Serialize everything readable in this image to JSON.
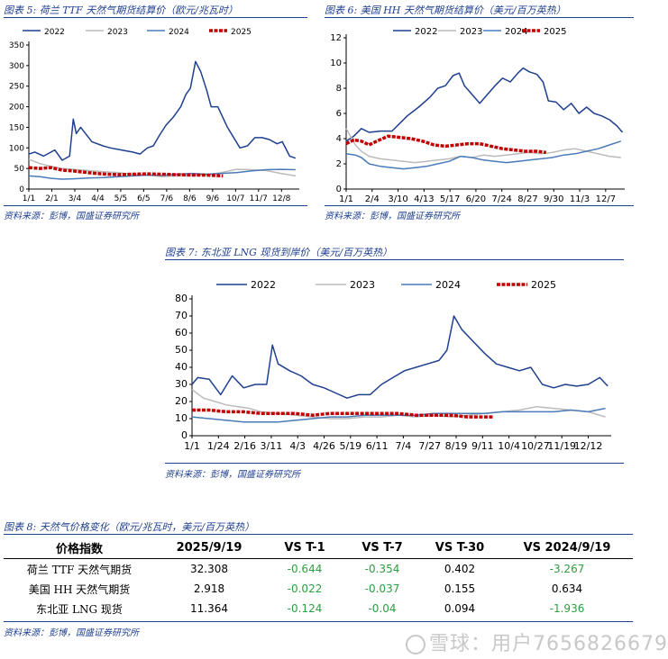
{
  "charts": [
    {
      "title": "图表 5:  荷兰 TTF 天然气期货结算价（欧元/兆瓦时）",
      "source": "资料来源：彭博，国盛证券研究所",
      "chart_data": {
        "type": "line",
        "title": "",
        "xlabel": "",
        "ylabel": "",
        "ylim": [
          0,
          350
        ],
        "yticks": [
          0,
          50,
          100,
          150,
          200,
          250,
          300,
          350
        ],
        "xlim": [
          0,
          365
        ],
        "xticks": [
          {
            "pos": 0,
            "label": "1/1"
          },
          {
            "pos": 31,
            "label": "2/1"
          },
          {
            "pos": 62,
            "label": "3/4"
          },
          {
            "pos": 93,
            "label": "4/4"
          },
          {
            "pos": 124,
            "label": "5/5"
          },
          {
            "pos": 155,
            "label": "6/5"
          },
          {
            "pos": 186,
            "label": "7/6"
          },
          {
            "pos": 217,
            "label": "8/6"
          },
          {
            "pos": 248,
            "label": "9/6"
          },
          {
            "pos": 279,
            "label": "10/7"
          },
          {
            "pos": 310,
            "label": "11/7"
          },
          {
            "pos": 341,
            "label": "12/8"
          }
        ],
        "legend_position": "top",
        "series": [
          {
            "name": "2022",
            "color": "#1f3f8f",
            "width": 1.5,
            "x": [
              0,
              8,
              20,
              35,
              45,
              55,
              60,
              64,
              70,
              85,
              100,
              110,
              125,
              140,
              150,
              160,
              168,
              176,
              185,
              195,
              205,
              212,
              218,
              225,
              232,
              240,
              246,
              255,
              268,
              285,
              295,
              305,
              315,
              325,
              335,
              342,
              352,
              360
            ],
            "y": [
              85,
              90,
              80,
              95,
              70,
              80,
              170,
              135,
              150,
              115,
              105,
              100,
              95,
              90,
              85,
              100,
              105,
              130,
              155,
              175,
              200,
              230,
              245,
              310,
              285,
              240,
              200,
              200,
              150,
              100,
              105,
              125,
              125,
              120,
              110,
              115,
              80,
              75
            ]
          },
          {
            "name": "2023",
            "color": "#bbbbbb",
            "width": 1.5,
            "x": [
              0,
              15,
              30,
              45,
              60,
              80,
              100,
              120,
              140,
              160,
              180,
              200,
              220,
              240,
              260,
              280,
              300,
              320,
              340,
              360
            ],
            "y": [
              72,
              62,
              55,
              50,
              48,
              45,
              42,
              40,
              36,
              34,
              30,
              32,
              33,
              35,
              40,
              48,
              47,
              45,
              38,
              32
            ]
          },
          {
            "name": "2024",
            "color": "#4a7ab8",
            "width": 1.5,
            "x": [
              0,
              15,
              30,
              45,
              60,
              80,
              100,
              120,
              140,
              160,
              180,
              200,
              220,
              240,
              260,
              280,
              300,
              320,
              340,
              360
            ],
            "y": [
              32,
              30,
              26,
              24,
              25,
              27,
              28,
              30,
              32,
              34,
              33,
              36,
              38,
              36,
              38,
              40,
              44,
              47,
              48,
              47
            ]
          },
          {
            "name": "2025",
            "color": "#c00000",
            "width": 3.5,
            "x": [
              0,
              15,
              30,
              45,
              60,
              75,
              90,
              105,
              120,
              140,
              160,
              180,
              200,
              220,
              240,
              262
            ],
            "y": [
              52,
              50,
              52,
              46,
              44,
              41,
              38,
              36,
              35,
              36,
              37,
              36,
              35,
              34,
              34,
              32
            ]
          }
        ]
      }
    },
    {
      "title": "图表 6:  美国 HH 天然气期货结算价（美元/百万英热）",
      "source": "资料来源：彭博，国盛证券研究所",
      "chart_data": {
        "type": "line",
        "title": "",
        "xlabel": "",
        "ylabel": "",
        "ylim": [
          0,
          12
        ],
        "yticks": [
          0,
          2,
          4,
          6,
          8,
          10,
          12
        ],
        "xlim": [
          0,
          365
        ],
        "xticks": [
          {
            "pos": 0,
            "label": "1/1"
          },
          {
            "pos": 34,
            "label": "2/4"
          },
          {
            "pos": 68,
            "label": "3/10"
          },
          {
            "pos": 102,
            "label": "4/13"
          },
          {
            "pos": 136,
            "label": "5/17"
          },
          {
            "pos": 170,
            "label": "6/20"
          },
          {
            "pos": 204,
            "label": "7/24"
          },
          {
            "pos": 238,
            "label": "8/27"
          },
          {
            "pos": 272,
            "label": "9/30"
          },
          {
            "pos": 306,
            "label": "11/3"
          },
          {
            "pos": 340,
            "label": "12/7"
          }
        ],
        "legend_position": "top",
        "series": [
          {
            "name": "2022",
            "color": "#1f3f8f",
            "width": 1.5,
            "x": [
              0,
              10,
              20,
              30,
              45,
              60,
              70,
              80,
              95,
              110,
              120,
              130,
              140,
              148,
              155,
              165,
              175,
              185,
              195,
              205,
              215,
              225,
              232,
              240,
              250,
              258,
              265,
              275,
              285,
              295,
              305,
              315,
              325,
              335,
              345,
              355,
              362
            ],
            "y": [
              3.8,
              4.2,
              4.8,
              4.5,
              4.6,
              4.6,
              5.2,
              5.8,
              6.5,
              7.3,
              8.0,
              8.2,
              9.0,
              9.2,
              8.2,
              7.5,
              6.8,
              7.5,
              8.2,
              8.8,
              8.5,
              9.2,
              9.6,
              9.3,
              9.1,
              8.5,
              7.0,
              6.9,
              6.3,
              6.8,
              6.0,
              6.5,
              6.0,
              5.8,
              5.5,
              5.0,
              4.5
            ]
          },
          {
            "name": "2023",
            "color": "#bbbbbb",
            "width": 1.5,
            "x": [
              0,
              12,
              20,
              30,
              45,
              60,
              75,
              90,
              105,
              120,
              135,
              150,
              165,
              180,
              195,
              210,
              225,
              240,
              255,
              270,
              285,
              300,
              315,
              330,
              345,
              360
            ],
            "y": [
              4.8,
              3.5,
              3.0,
              2.6,
              2.4,
              2.3,
              2.2,
              2.1,
              2.2,
              2.3,
              2.4,
              2.6,
              2.5,
              2.7,
              2.6,
              2.7,
              2.8,
              2.9,
              2.8,
              2.9,
              3.1,
              3.2,
              3.0,
              2.8,
              2.6,
              2.5
            ]
          },
          {
            "name": "2024",
            "color": "#4a7ab8",
            "width": 1.5,
            "x": [
              0,
              12,
              20,
              30,
              45,
              60,
              75,
              90,
              105,
              120,
              135,
              150,
              165,
              180,
              195,
              210,
              225,
              240,
              255,
              270,
              285,
              300,
              315,
              330,
              345,
              360
            ],
            "y": [
              2.8,
              2.7,
              2.5,
              2.0,
              1.8,
              1.7,
              1.6,
              1.7,
              1.8,
              2.0,
              2.2,
              2.6,
              2.5,
              2.3,
              2.2,
              2.1,
              2.2,
              2.3,
              2.4,
              2.5,
              2.7,
              2.8,
              3.0,
              3.2,
              3.5,
              3.8
            ]
          },
          {
            "name": "2025",
            "color": "#c00000",
            "width": 3.5,
            "x": [
              0,
              10,
              20,
              30,
              40,
              55,
              70,
              85,
              100,
              115,
              130,
              145,
              160,
              175,
              190,
              205,
              220,
              235,
              250,
              262
            ],
            "y": [
              3.6,
              3.9,
              3.8,
              3.5,
              3.8,
              4.2,
              4.1,
              4.0,
              3.8,
              3.5,
              3.4,
              3.5,
              3.6,
              3.6,
              3.4,
              3.2,
              3.1,
              3.0,
              3.0,
              2.9
            ]
          }
        ]
      }
    },
    {
      "title": "图表 7:  东北亚 LNG 现货到岸价（美元/百万英热）",
      "source": "资料来源：彭博，国盛证券研究所",
      "chart_data": {
        "type": "line",
        "title": "",
        "xlabel": "",
        "ylabel": "",
        "ylim": [
          0,
          80
        ],
        "yticks": [
          0,
          10,
          20,
          30,
          40,
          50,
          60,
          70,
          80
        ],
        "xlim": [
          0,
          365
        ],
        "xticks": [
          {
            "pos": 0,
            "label": "1/1"
          },
          {
            "pos": 23,
            "label": "1/24"
          },
          {
            "pos": 46,
            "label": "2/16"
          },
          {
            "pos": 69,
            "label": "3/11"
          },
          {
            "pos": 92,
            "label": "4/3"
          },
          {
            "pos": 115,
            "label": "4/26"
          },
          {
            "pos": 138,
            "label": "5/19"
          },
          {
            "pos": 161,
            "label": "6/11"
          },
          {
            "pos": 184,
            "label": "7/4"
          },
          {
            "pos": 207,
            "label": "7/27"
          },
          {
            "pos": 230,
            "label": "8/19"
          },
          {
            "pos": 253,
            "label": "9/11"
          },
          {
            "pos": 276,
            "label": "10/4"
          },
          {
            "pos": 299,
            "label": "10/27"
          },
          {
            "pos": 322,
            "label": "11/19"
          },
          {
            "pos": 345,
            "label": "12/12"
          }
        ],
        "legend_position": "top",
        "series": [
          {
            "name": "2022",
            "color": "#1f3f8f",
            "width": 1.5,
            "x": [
              0,
              5,
              15,
              25,
              35,
              45,
              55,
              65,
              70,
              75,
              85,
              95,
              105,
              115,
              125,
              135,
              145,
              155,
              165,
              175,
              185,
              195,
              205,
              215,
              222,
              228,
              235,
              245,
              255,
              265,
              275,
              285,
              295,
              305,
              315,
              325,
              335,
              345,
              355,
              362
            ],
            "y": [
              30,
              34,
              33,
              24,
              35,
              28,
              30,
              30,
              53,
              42,
              38,
              35,
              30,
              28,
              25,
              22,
              24,
              24,
              30,
              34,
              38,
              40,
              42,
              44,
              50,
              70,
              62,
              55,
              48,
              42,
              40,
              38,
              40,
              30,
              28,
              30,
              29,
              30,
              34,
              29
            ]
          },
          {
            "name": "2023",
            "color": "#bbbbbb",
            "width": 1.5,
            "x": [
              0,
              10,
              20,
              30,
              40,
              50,
              60,
              75,
              90,
              105,
              120,
              135,
              150,
              165,
              180,
              195,
              210,
              225,
              240,
              255,
              270,
              285,
              300,
              315,
              330,
              345,
              360
            ],
            "y": [
              27,
              22,
              20,
              18,
              17,
              16,
              14,
              13,
              12,
              11,
              10,
              10,
              11,
              11,
              12,
              11,
              12,
              11,
              12,
              13,
              14,
              15,
              17,
              16,
              15,
              14,
              11
            ]
          },
          {
            "name": "2024",
            "color": "#4a7ab8",
            "width": 1.5,
            "x": [
              0,
              15,
              30,
              45,
              60,
              75,
              90,
              105,
              120,
              135,
              150,
              165,
              180,
              195,
              210,
              225,
              240,
              255,
              270,
              285,
              300,
              315,
              330,
              345,
              360
            ],
            "y": [
              11,
              10,
              9,
              8,
              8,
              8,
              9,
              10,
              11,
              11,
              12,
              12,
              12,
              12,
              13,
              13,
              13,
              13,
              14,
              14,
              14,
              14,
              15,
              14,
              16
            ]
          },
          {
            "name": "2025",
            "color": "#c00000",
            "width": 3.5,
            "x": [
              0,
              15,
              30,
              45,
              60,
              75,
              90,
              105,
              120,
              135,
              150,
              165,
              180,
              195,
              210,
              225,
              240,
              262
            ],
            "y": [
              15,
              15,
              14,
              14,
              13,
              13,
              13,
              12,
              13,
              13,
              13,
              13,
              13,
              12,
              12,
              12,
              11,
              11
            ]
          }
        ]
      }
    }
  ],
  "price_table": {
    "title": "图表 8:  天然气价格变化（欧元/兆瓦时，美元/百万英热）",
    "source": "资料来源：彭博，国盛证券研究所",
    "headers": [
      "价格指数",
      "2025/9/19",
      "VS T-1",
      "VS T-7",
      "VS T-30",
      "VS 2024/9/19"
    ],
    "rows": [
      {
        "name": "荷兰 TTF 天然气期货",
        "value": "32.308",
        "t1": "-0.644",
        "t7": "-0.354",
        "t30": "0.402",
        "yoy": "-3.267"
      },
      {
        "name": "美国 HH 天然气期货",
        "value": "2.918",
        "t1": "-0.022",
        "t7": "-0.037",
        "t30": "0.155",
        "yoy": "0.634"
      },
      {
        "name": "东北亚 LNG 现货",
        "value": "11.364",
        "t1": "-0.124",
        "t7": "-0.04",
        "t30": "0.094",
        "yoy": "-1.936"
      }
    ]
  },
  "watermark": "雪球：用户7656826679"
}
